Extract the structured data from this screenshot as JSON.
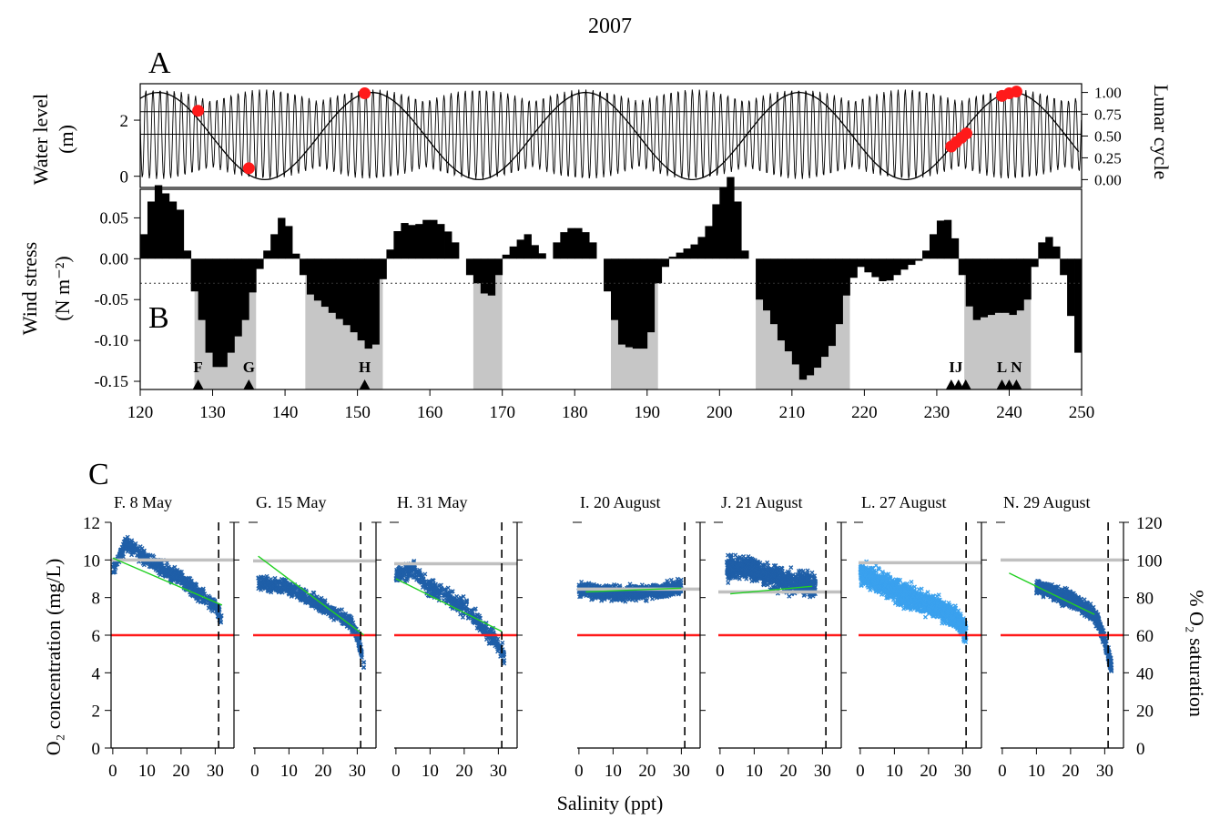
{
  "figure": {
    "title": "2007",
    "x_label": "Salinity (ppt)"
  },
  "chart_data": [
    {
      "id": "A",
      "panel_letter": "A",
      "type": "line",
      "xlim": [
        120,
        250
      ],
      "y_left": {
        "label_lines": [
          "Water level",
          "(m)"
        ],
        "lim": [
          -0.4,
          3.3
        ],
        "ticks": [
          0,
          2
        ]
      },
      "y_right": {
        "label": "Lunar cycle",
        "lim": [
          -0.09,
          1.1
        ],
        "ticks": [
          "0.00",
          "0.25",
          "0.50",
          "0.75",
          "1.00"
        ]
      },
      "hlines_left": [
        1.5,
        2.3
      ],
      "tide": {
        "mean": 1.5,
        "amp_neap": 0.75,
        "amp_spring": 1.6,
        "period_days": 0.98
      },
      "lunar_cycle": {
        "period_days": 29.5,
        "peak_day": 122.5
      },
      "lunar_points": [
        {
          "x": 128,
          "y": 0.79
        },
        {
          "x": 135,
          "y": 0.13
        },
        {
          "x": 151,
          "y": 0.99
        },
        {
          "x": 232,
          "y": 0.38
        },
        {
          "x": 232.7,
          "y": 0.43
        },
        {
          "x": 233.4,
          "y": 0.48
        },
        {
          "x": 234.1,
          "y": 0.53
        },
        {
          "x": 239,
          "y": 0.96
        },
        {
          "x": 240,
          "y": 0.99
        },
        {
          "x": 241,
          "y": 1.01
        }
      ]
    },
    {
      "id": "B",
      "panel_letter": "B",
      "type": "bar",
      "xlim": [
        120,
        250
      ],
      "x_ticks": [
        120,
        130,
        140,
        150,
        160,
        170,
        180,
        190,
        200,
        210,
        220,
        230,
        240,
        250
      ],
      "y_label_lines": [
        "Wind stress",
        "(N m⁻²)"
      ],
      "ylim": [
        -0.16,
        0.085
      ],
      "y_ticks": [
        "0.05",
        "0.00",
        "-0.05",
        "-0.10",
        "-0.15"
      ],
      "threshold": -0.03,
      "shaded_ranges": [
        [
          127.5,
          136
        ],
        [
          142.8,
          153.5
        ],
        [
          166,
          170
        ],
        [
          185,
          191.5
        ],
        [
          205,
          218
        ],
        [
          233.8,
          243
        ]
      ],
      "wind_keys": [
        [
          120.0,
          -0.02
        ],
        [
          120.7,
          0.05
        ],
        [
          121.5,
          0.07
        ],
        [
          122.5,
          0.09
        ],
        [
          123.5,
          0.08
        ],
        [
          124.5,
          0.07
        ],
        [
          125.5,
          0.06
        ],
        [
          126.2,
          0.02
        ],
        [
          126.8,
          0.0
        ],
        [
          127.5,
          -0.04
        ],
        [
          128.2,
          -0.06
        ],
        [
          129.0,
          -0.1
        ],
        [
          130.0,
          -0.13
        ],
        [
          131.0,
          -0.135
        ],
        [
          132.0,
          -0.13
        ],
        [
          133.0,
          -0.1
        ],
        [
          134.0,
          -0.09
        ],
        [
          135.0,
          -0.06
        ],
        [
          135.8,
          -0.03
        ],
        [
          137.0,
          0.0
        ],
        [
          138.5,
          0.03
        ],
        [
          139.5,
          0.05
        ],
        [
          140.5,
          0.04
        ],
        [
          141.2,
          0.01
        ],
        [
          142.0,
          0.0
        ],
        [
          143.0,
          -0.04
        ],
        [
          145.0,
          -0.055
        ],
        [
          147.0,
          -0.07
        ],
        [
          149.0,
          -0.085
        ],
        [
          150.5,
          -0.1
        ],
        [
          151.5,
          -0.11
        ],
        [
          152.5,
          -0.105
        ],
        [
          153.2,
          -0.04
        ],
        [
          154.0,
          0.0
        ],
        [
          156.0,
          0.045
        ],
        [
          158.0,
          0.04
        ],
        [
          160.0,
          0.05
        ],
        [
          162.0,
          0.04
        ],
        [
          163.5,
          0.02
        ],
        [
          164.5,
          0.0
        ],
        [
          165.5,
          -0.02
        ],
        [
          167.0,
          -0.035
        ],
        [
          168.0,
          -0.05
        ],
        [
          169.0,
          -0.04
        ],
        [
          170.0,
          0.0
        ],
        [
          172.0,
          0.02
        ],
        [
          173.5,
          0.03
        ],
        [
          175.0,
          0.01
        ],
        [
          176.5,
          0.0
        ],
        [
          178.0,
          0.03
        ],
        [
          180.0,
          0.04
        ],
        [
          182.0,
          0.03
        ],
        [
          183.5,
          0.0
        ],
        [
          185.0,
          -0.06
        ],
        [
          186.5,
          -0.105
        ],
        [
          188.0,
          -0.11
        ],
        [
          189.5,
          -0.11
        ],
        [
          190.5,
          -0.09
        ],
        [
          191.5,
          -0.03
        ],
        [
          193.0,
          0.0
        ],
        [
          195.0,
          0.01
        ],
        [
          197.0,
          0.02
        ],
        [
          198.5,
          0.04
        ],
        [
          200.0,
          0.08
        ],
        [
          201.5,
          0.1
        ],
        [
          202.5,
          0.07
        ],
        [
          203.5,
          0.01
        ],
        [
          204.5,
          0.0
        ],
        [
          205.5,
          -0.05
        ],
        [
          207.0,
          -0.07
        ],
        [
          208.5,
          -0.1
        ],
        [
          210.0,
          -0.12
        ],
        [
          211.5,
          -0.148
        ],
        [
          213.0,
          -0.14
        ],
        [
          214.5,
          -0.12
        ],
        [
          216.0,
          -0.1
        ],
        [
          217.0,
          -0.06
        ],
        [
          218.0,
          -0.03
        ],
        [
          219.5,
          -0.01
        ],
        [
          221.0,
          -0.02
        ],
        [
          223.0,
          -0.03
        ],
        [
          224.5,
          -0.02
        ],
        [
          226.0,
          -0.01
        ],
        [
          228.0,
          0.0
        ],
        [
          229.5,
          0.03
        ],
        [
          231.0,
          0.055
        ],
        [
          232.0,
          0.04
        ],
        [
          233.0,
          0.01
        ],
        [
          234.0,
          -0.05
        ],
        [
          235.5,
          -0.075
        ],
        [
          237.0,
          -0.07
        ],
        [
          239.0,
          -0.065
        ],
        [
          241.0,
          -0.07
        ],
        [
          242.5,
          -0.05
        ],
        [
          243.5,
          -0.01
        ],
        [
          244.5,
          0.02
        ],
        [
          246.0,
          0.03
        ],
        [
          247.0,
          0.0
        ],
        [
          248.0,
          -0.04
        ],
        [
          249.0,
          -0.1
        ],
        [
          250.0,
          -0.13
        ]
      ],
      "events": [
        {
          "label": "F",
          "x": 128
        },
        {
          "label": "G",
          "x": 135
        },
        {
          "label": "H",
          "x": 151
        },
        {
          "label": "IJ",
          "x": 232
        },
        {
          "label": "L",
          "x": 239
        },
        {
          "label": "N",
          "x": 241
        }
      ],
      "event_markers": [
        128,
        135,
        151,
        232,
        233,
        234,
        239,
        240,
        241
      ]
    },
    {
      "id": "C",
      "panel_letter": "C",
      "type": "scatter",
      "y_left_label": "O₂ concentration (mg/L)",
      "y_right_label": "% O₂ saturation",
      "ylim": [
        0,
        12
      ],
      "y_left_ticks": [
        0,
        2,
        4,
        6,
        8,
        10,
        12
      ],
      "y_right_ticks": [
        0,
        20,
        40,
        60,
        80,
        100,
        120
      ],
      "xlim": [
        -0.5,
        35.5
      ],
      "x_ticks": [
        0,
        10,
        20,
        30
      ],
      "hypoxia_line": 6.0,
      "dashed_salinity": 31,
      "subplots": [
        {
          "title": "F. 8 May",
          "color": "#1f5fa8",
          "saturation_line": 10.0,
          "fit": [
            [
              0,
              10.1
            ],
            [
              32,
              7.6
            ]
          ],
          "n_points": 600,
          "trend": [
            [
              0,
              9.5
            ],
            [
              4,
              10.9
            ],
            [
              10,
              10.0
            ],
            [
              20,
              9.0
            ],
            [
              26,
              8.1
            ],
            [
              30,
              7.6
            ],
            [
              32,
              6.7
            ]
          ],
          "spread": 0.45
        },
        {
          "title": "G. 15 May",
          "color": "#1f5fa8",
          "saturation_line": 9.95,
          "fit": [
            [
              1,
              10.2
            ],
            [
              32,
              6.0
            ]
          ],
          "n_points": 600,
          "trend": [
            [
              1,
              8.8
            ],
            [
              10,
              8.5
            ],
            [
              20,
              7.5
            ],
            [
              28,
              6.7
            ],
            [
              30,
              6.0
            ],
            [
              32,
              4.4
            ]
          ],
          "spread": 0.45
        },
        {
          "title": "H. 31 May",
          "color": "#1f5fa8",
          "saturation_line": 9.8,
          "fit": [
            [
              0,
              9.0
            ],
            [
              31,
              6.2
            ]
          ],
          "n_points": 500,
          "trend": [
            [
              0,
              9.2
            ],
            [
              5,
              9.5
            ],
            [
              10,
              8.5
            ],
            [
              20,
              7.5
            ],
            [
              28,
              6.0
            ],
            [
              32,
              4.8
            ]
          ],
          "spread": 0.55
        },
        {
          "title": "I. 20 August",
          "color": "#1f5fa8",
          "saturation_line": 8.45,
          "fit": [
            [
              2,
              8.3
            ],
            [
              30,
              8.5
            ]
          ],
          "n_points": 900,
          "trend": [
            [
              0,
              8.4
            ],
            [
              10,
              8.2
            ],
            [
              20,
              8.3
            ],
            [
              25,
              8.4
            ],
            [
              30,
              8.6
            ]
          ],
          "spread": 0.45
        },
        {
          "title": "J. 21 August",
          "color": "#1f5fa8",
          "saturation_line": 8.3,
          "fit": [
            [
              3,
              8.2
            ],
            [
              27,
              8.6
            ]
          ],
          "n_points": 900,
          "trend": [
            [
              2,
              9.5
            ],
            [
              8,
              9.6
            ],
            [
              15,
              9.1
            ],
            [
              22,
              8.8
            ],
            [
              28,
              8.6
            ]
          ],
          "spread": 0.7
        },
        {
          "title": "L. 27 August",
          "color": "#3aa1ee",
          "saturation_line": 9.85,
          "fit": null,
          "n_points": 1400,
          "trend": [
            [
              0,
              9.3
            ],
            [
              10,
              8.4
            ],
            [
              20,
              7.6
            ],
            [
              28,
              7.0
            ],
            [
              31,
              6.1
            ]
          ],
          "spread": 0.7
        },
        {
          "title": "N. 29 August",
          "color": "#1f5fa8",
          "saturation_line": 10.0,
          "fit": [
            [
              2,
              9.3
            ],
            [
              27,
              7.1
            ]
          ],
          "n_points": 900,
          "trend": [
            [
              10,
              8.6
            ],
            [
              20,
              7.9
            ],
            [
              25,
              7.4
            ],
            [
              28,
              6.8
            ],
            [
              30,
              5.7
            ],
            [
              32,
              4.3
            ]
          ],
          "spread": 0.45
        }
      ]
    }
  ],
  "colors": {
    "shade": "#c6c6c6",
    "hypoxia": "#ff1a1a",
    "saturation": "#c0c0c0",
    "fit": "#22d022",
    "marker_red": "#ff1a1a"
  }
}
